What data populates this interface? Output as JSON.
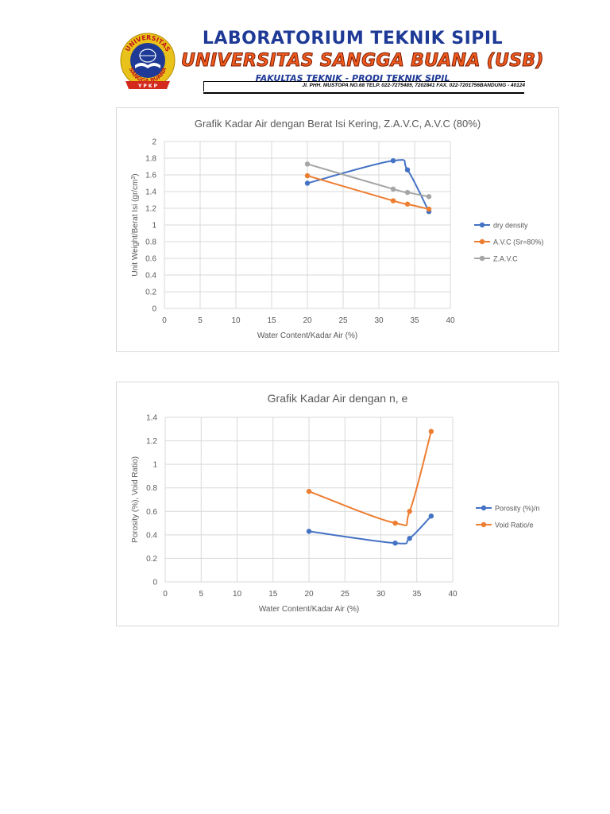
{
  "header": {
    "title": "LABORATORIUM TEKNIK SIPIL",
    "university": "UNIVERSITAS SANGGA BUANA (USB)",
    "faculty": "FAKULTAS TEKNIK - PRODI TEKNIK SIPIL",
    "address": "Jl. PHH. MUSTOPA NO.68 TELP. 022-7275489, 7202841 FAX. 022-7201756BANDUNG - 40124",
    "logo": {
      "top_text": "UNIVERSITAS",
      "bottom_text": "SANGGA BUANA",
      "ribbon_text": "Y P K P",
      "colors": {
        "ring": "#e8c21a",
        "inner": "#1e3a96",
        "ribbon": "#d42a1e"
      }
    }
  },
  "chart_data": [
    {
      "type": "scatter",
      "title": "Grafik Kadar Air dengan Berat Isi Kering, Z.A.V.C, A.V.C (80%)",
      "xlabel": "Water Content/Kadar Air (%)",
      "ylabel_main": "Unit Weight/Berat Isi (gr/cm",
      "ylabel_sup": "3",
      "ylabel_end": ")",
      "xlim": [
        0,
        40
      ],
      "ylim": [
        0,
        2
      ],
      "xticks": [
        "0",
        "5",
        "10",
        "15",
        "20",
        "25",
        "30",
        "35",
        "40"
      ],
      "yticks": [
        "0",
        "0.2",
        "0.4",
        "0.6",
        "0.8",
        "1",
        "1.2",
        "1.4",
        "1.6",
        "1.8",
        "2"
      ],
      "grid": true,
      "legend": "right",
      "series": [
        {
          "name": "dry density",
          "color": "#4472c4",
          "x": [
            20,
            32,
            34,
            37
          ],
          "y": [
            1.5,
            1.77,
            1.66,
            1.16
          ]
        },
        {
          "name": "A.V.C (Sr=80%)",
          "color": "#ed7d31",
          "x": [
            20,
            32,
            34,
            37
          ],
          "y": [
            1.59,
            1.29,
            1.25,
            1.19
          ]
        },
        {
          "name": "Z.A.V.C",
          "color": "#a5a5a5",
          "x": [
            20,
            32,
            34,
            37
          ],
          "y": [
            1.73,
            1.43,
            1.39,
            1.34
          ]
        }
      ]
    },
    {
      "type": "scatter",
      "title": "Grafik Kadar Air dengan n, e",
      "xlabel": "Water Content/Kadar Air (%)",
      "ylabel_main": "Porosity (%), Void Ratio)",
      "ylabel_sup": "",
      "ylabel_end": "",
      "xlim": [
        0,
        40
      ],
      "ylim": [
        0,
        1.4
      ],
      "xticks": [
        "0",
        "5",
        "10",
        "15",
        "20",
        "25",
        "30",
        "35",
        "40"
      ],
      "yticks": [
        "0",
        "0.2",
        "0.4",
        "0.6",
        "0.8",
        "1",
        "1.2",
        "1.4"
      ],
      "grid": true,
      "legend": "right",
      "series": [
        {
          "name": "Porosity (%)/n",
          "color": "#4472c4",
          "x": [
            20,
            32,
            34,
            37
          ],
          "y": [
            0.43,
            0.33,
            0.37,
            0.56
          ]
        },
        {
          "name": "Void Ratio/e",
          "color": "#ed7d31",
          "x": [
            20,
            32,
            34,
            37
          ],
          "y": [
            0.77,
            0.5,
            0.6,
            1.28
          ]
        }
      ]
    }
  ]
}
